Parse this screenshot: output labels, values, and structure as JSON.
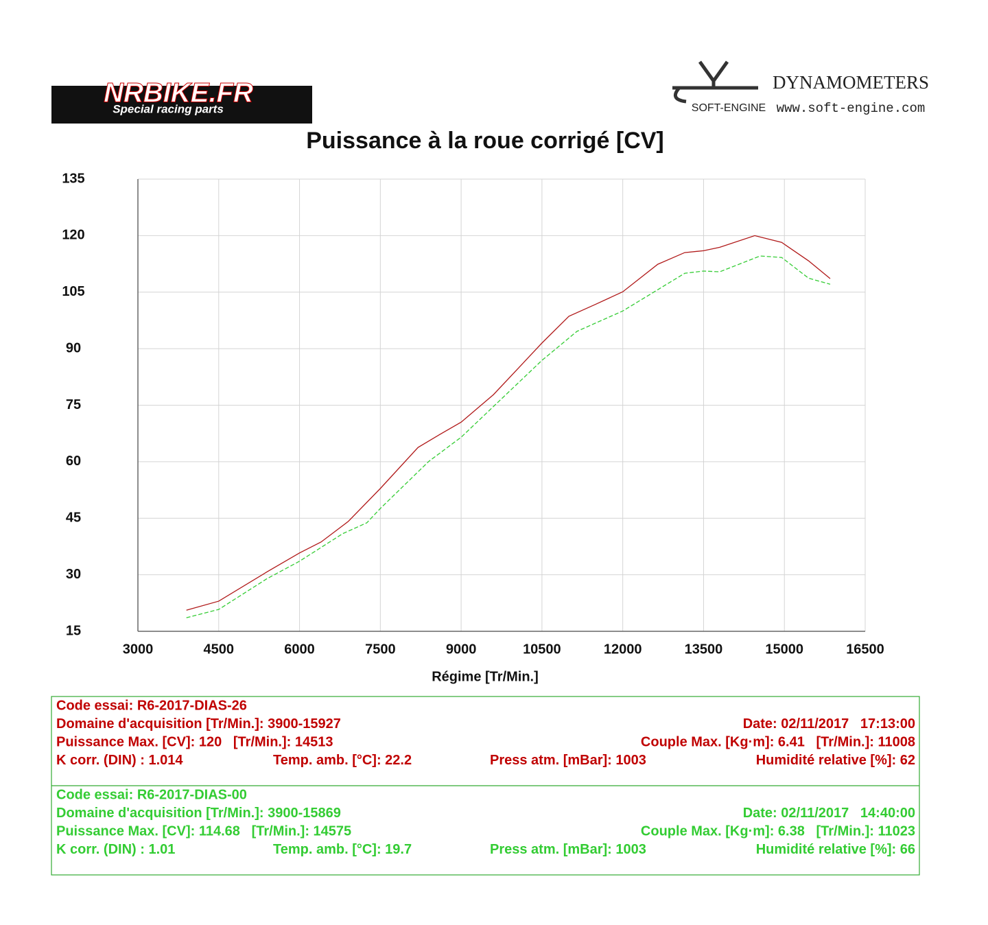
{
  "header": {
    "left_logo": "NRBIKE.FR",
    "left_tagline": "Special racing parts",
    "right_brand": "DYNAMOMETERS",
    "right_logo": "SOFT-ENGINE",
    "right_url": "www.soft-engine.com"
  },
  "chart_data": {
    "type": "line",
    "title": "Puissance à la roue corrigé [CV]",
    "x_label": "Régime [Tr/Min.]",
    "xlim": [
      3000,
      16500
    ],
    "xticks": [
      3000,
      4500,
      6000,
      7500,
      9000,
      10500,
      12000,
      13500,
      15000,
      16500
    ],
    "ylim": [
      15,
      135
    ],
    "yticks": [
      15,
      30,
      45,
      60,
      75,
      90,
      105,
      120,
      135
    ],
    "grid": true,
    "series": [
      {
        "color": "#b01818",
        "dashed": false,
        "x": [
          3900,
          4500,
          5400,
          6000,
          6400,
          6900,
          7500,
          8200,
          8600,
          9000,
          9600,
          10500,
          11000,
          11500,
          12000,
          12650,
          13150,
          13500,
          13800,
          14450,
          14950,
          15450,
          15850
        ],
        "values": [
          20.6,
          23.0,
          30.8,
          35.8,
          38.7,
          44.1,
          52.9,
          63.8,
          67.2,
          70.5,
          77.8,
          91.5,
          98.6,
          101.8,
          105.1,
          112.4,
          115.5,
          116.0,
          116.9,
          120.0,
          118.2,
          113.3,
          108.6
        ]
      },
      {
        "color": "#33cc33",
        "dashed": true,
        "x": [
          3900,
          4500,
          5400,
          6000,
          6800,
          7250,
          7500,
          8400,
          9000,
          10500,
          11150,
          12000,
          13150,
          13500,
          13800,
          14550,
          14950,
          15450,
          15850
        ],
        "values": [
          18.6,
          20.8,
          29.0,
          33.6,
          40.9,
          43.8,
          47.6,
          60.1,
          66.5,
          86.9,
          94.6,
          100.0,
          110.0,
          110.6,
          110.4,
          114.6,
          114.2,
          108.7,
          107.1
        ]
      }
    ]
  },
  "test_info": [
    {
      "color": "#c00000",
      "rows": [
        [
          "Code essai: R6-2017-DIAS-26"
        ],
        [
          "Domaine d'acquisition [Tr/Min.]: 3900-15927",
          "Date: 02/11/2017   17:13:00"
        ],
        [
          "Puissance Max. [CV]: 120   [Tr/Min.]: 14513",
          "Couple Max. [Kg·m]: 6.41   [Tr/Min.]: 11008"
        ],
        [
          "K corr. (DIN) : 1.014",
          "Temp. amb. [°C]: 22.2",
          "Press atm. [mBar]: 1003",
          "Humidité relative [%]: 62"
        ]
      ]
    },
    {
      "color": "#33cc33",
      "rows": [
        [
          "Code essai: R6-2017-DIAS-00"
        ],
        [
          "Domaine d'acquisition [Tr/Min.]: 3900-15869",
          "Date: 02/11/2017   14:40:00"
        ],
        [
          "Puissance Max. [CV]: 114.68   [Tr/Min.]: 14575",
          "Couple Max. [Kg·m]: 6.38   [Tr/Min.]: 11023"
        ],
        [
          "K corr. (DIN) : 1.01",
          "Temp. amb. [°C]: 19.7",
          "Press atm. [mBar]: 1003",
          "Humidité relative [%]: 66"
        ]
      ]
    }
  ]
}
